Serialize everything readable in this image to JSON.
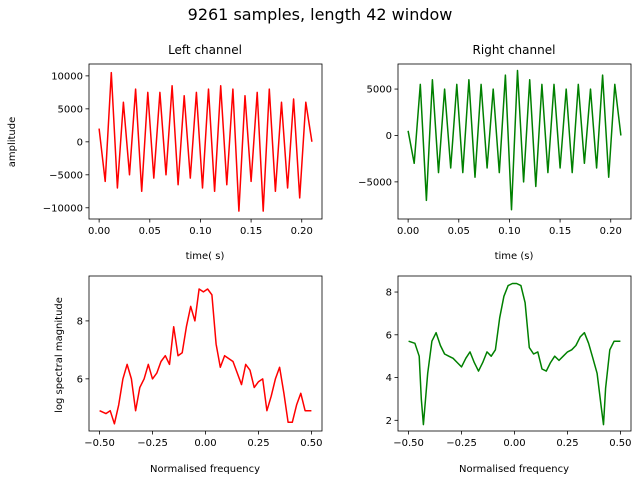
{
  "figure": {
    "title": "9261 samples, length 42 window"
  },
  "chart_data": [
    {
      "type": "line",
      "title": "Left channel",
      "xlabel": "time( s)",
      "ylabel": "amplitude",
      "xlim": [
        -0.01,
        0.22
      ],
      "ylim": [
        -11700,
        11800
      ],
      "xticks": [
        0.0,
        0.05,
        0.1,
        0.15,
        0.2
      ],
      "xticklabels": [
        "0.00",
        "0.05",
        "0.10",
        "0.15",
        "0.20"
      ],
      "yticks": [
        -10000,
        -5000,
        0,
        5000,
        10000
      ],
      "yticklabels": [
        "−10000",
        "−5000",
        "0",
        "5000",
        "10000"
      ],
      "grid": false,
      "series": [
        {
          "color": "#ff0000",
          "x": [
            0.0,
            0.006,
            0.012,
            0.018,
            0.024,
            0.03,
            0.036,
            0.042,
            0.048,
            0.054,
            0.06,
            0.066,
            0.072,
            0.078,
            0.084,
            0.09,
            0.096,
            0.102,
            0.108,
            0.114,
            0.12,
            0.126,
            0.132,
            0.138,
            0.144,
            0.15,
            0.156,
            0.162,
            0.168,
            0.174,
            0.18,
            0.186,
            0.192,
            0.198,
            0.204,
            0.21
          ],
          "values": [
            2000,
            -6000,
            10500,
            -7000,
            6000,
            -5000,
            8000,
            -7500,
            7500,
            -5500,
            7500,
            -5000,
            8500,
            -6500,
            7000,
            -5500,
            7500,
            -7000,
            8000,
            -7500,
            8500,
            -6500,
            8000,
            -10500,
            7000,
            -6000,
            7500,
            -10500,
            8000,
            -7500,
            6000,
            -7000,
            6500,
            -8500,
            6000,
            0
          ]
        }
      ]
    },
    {
      "type": "line",
      "title": "Right channel",
      "xlabel": "time (s)",
      "ylabel": "",
      "xlim": [
        -0.01,
        0.22
      ],
      "ylim": [
        -9000,
        7700
      ],
      "xticks": [
        0.0,
        0.05,
        0.1,
        0.15,
        0.2
      ],
      "xticklabels": [
        "0.00",
        "0.05",
        "0.10",
        "0.15",
        "0.20"
      ],
      "yticks": [
        -5000,
        0,
        5000
      ],
      "yticklabels": [
        "−5000",
        "0",
        "5000"
      ],
      "grid": false,
      "series": [
        {
          "color": "#008000",
          "x": [
            0.0,
            0.006,
            0.012,
            0.018,
            0.024,
            0.03,
            0.036,
            0.042,
            0.048,
            0.054,
            0.06,
            0.066,
            0.072,
            0.078,
            0.084,
            0.09,
            0.096,
            0.102,
            0.108,
            0.114,
            0.12,
            0.126,
            0.132,
            0.138,
            0.144,
            0.15,
            0.156,
            0.162,
            0.168,
            0.174,
            0.18,
            0.186,
            0.192,
            0.198,
            0.204,
            0.21
          ],
          "values": [
            500,
            -3000,
            5500,
            -7000,
            6000,
            -4000,
            5000,
            -3500,
            5500,
            -4000,
            6000,
            -4500,
            5500,
            -3500,
            5000,
            -4000,
            6500,
            -8000,
            7000,
            -5000,
            6000,
            -5500,
            5500,
            -4000,
            5500,
            -3500,
            5000,
            -4000,
            5500,
            -3000,
            5000,
            -3500,
            6500,
            -4500,
            5500,
            0
          ]
        }
      ]
    },
    {
      "type": "line",
      "title": "",
      "xlabel": "Normalised frequency",
      "ylabel": "log spectral magnitude",
      "xlim": [
        -0.55,
        0.55
      ],
      "ylim": [
        4.2,
        9.55
      ],
      "xticks": [
        -0.5,
        -0.25,
        0.0,
        0.25,
        0.5
      ],
      "xticklabels": [
        "−0.50",
        "−0.25",
        "0.00",
        "0.25",
        "0.50"
      ],
      "yticks": [
        6,
        8
      ],
      "yticklabels": [
        "6",
        "8"
      ],
      "grid": false,
      "series": [
        {
          "color": "#ff0000",
          "x": [
            -0.5,
            -0.47,
            -0.45,
            -0.43,
            -0.41,
            -0.39,
            -0.37,
            -0.35,
            -0.33,
            -0.31,
            -0.29,
            -0.27,
            -0.25,
            -0.23,
            -0.21,
            -0.19,
            -0.17,
            -0.15,
            -0.13,
            -0.11,
            -0.09,
            -0.07,
            -0.05,
            -0.03,
            -0.01,
            0.01,
            0.03,
            0.05,
            0.07,
            0.09,
            0.11,
            0.13,
            0.15,
            0.17,
            0.19,
            0.21,
            0.23,
            0.25,
            0.27,
            0.29,
            0.31,
            0.33,
            0.35,
            0.37,
            0.39,
            0.41,
            0.43,
            0.45,
            0.47,
            0.5
          ],
          "values": [
            4.9,
            4.8,
            4.9,
            4.45,
            5.1,
            6.0,
            6.5,
            6.0,
            4.9,
            5.7,
            6.0,
            6.5,
            6.0,
            6.2,
            6.6,
            6.8,
            6.5,
            7.8,
            6.8,
            6.9,
            7.8,
            8.5,
            8.0,
            9.1,
            9.0,
            9.1,
            8.9,
            7.2,
            6.4,
            6.8,
            6.7,
            6.6,
            6.2,
            5.8,
            6.5,
            6.3,
            5.7,
            5.9,
            6.0,
            4.9,
            5.4,
            6.0,
            6.4,
            5.5,
            4.5,
            4.5,
            5.1,
            5.5,
            4.9,
            4.9
          ]
        }
      ]
    },
    {
      "type": "line",
      "title": "",
      "xlabel": "Normalised frequency",
      "ylabel": "",
      "xlim": [
        -0.55,
        0.55
      ],
      "ylim": [
        1.5,
        8.75
      ],
      "xticks": [
        -0.5,
        -0.25,
        0.0,
        0.25,
        0.5
      ],
      "xticklabels": [
        "−0.50",
        "−0.25",
        "0.00",
        "0.25",
        "0.50"
      ],
      "yticks": [
        2,
        4,
        6,
        8
      ],
      "yticklabels": [
        "2",
        "4",
        "6",
        "8"
      ],
      "grid": false,
      "series": [
        {
          "color": "#008000",
          "x": [
            -0.5,
            -0.47,
            -0.45,
            -0.44,
            -0.43,
            -0.41,
            -0.39,
            -0.37,
            -0.35,
            -0.33,
            -0.31,
            -0.29,
            -0.27,
            -0.25,
            -0.23,
            -0.21,
            -0.19,
            -0.17,
            -0.15,
            -0.13,
            -0.11,
            -0.09,
            -0.07,
            -0.05,
            -0.03,
            -0.01,
            0.01,
            0.03,
            0.05,
            0.07,
            0.09,
            0.11,
            0.13,
            0.15,
            0.17,
            0.19,
            0.21,
            0.23,
            0.25,
            0.27,
            0.29,
            0.31,
            0.33,
            0.35,
            0.37,
            0.39,
            0.41,
            0.42,
            0.43,
            0.45,
            0.47,
            0.5
          ],
          "values": [
            5.7,
            5.6,
            5.0,
            3.0,
            1.8,
            4.2,
            5.7,
            6.1,
            5.5,
            5.1,
            5.0,
            4.9,
            4.7,
            4.5,
            4.9,
            5.2,
            4.7,
            4.3,
            4.7,
            5.2,
            5.0,
            5.3,
            6.8,
            7.8,
            8.3,
            8.4,
            8.4,
            8.3,
            7.5,
            5.4,
            5.1,
            5.2,
            4.4,
            4.3,
            4.7,
            5.0,
            4.8,
            5.0,
            5.2,
            5.3,
            5.5,
            5.9,
            6.1,
            5.6,
            4.9,
            4.2,
            2.6,
            1.8,
            3.5,
            5.3,
            5.7,
            5.7
          ]
        }
      ]
    }
  ]
}
